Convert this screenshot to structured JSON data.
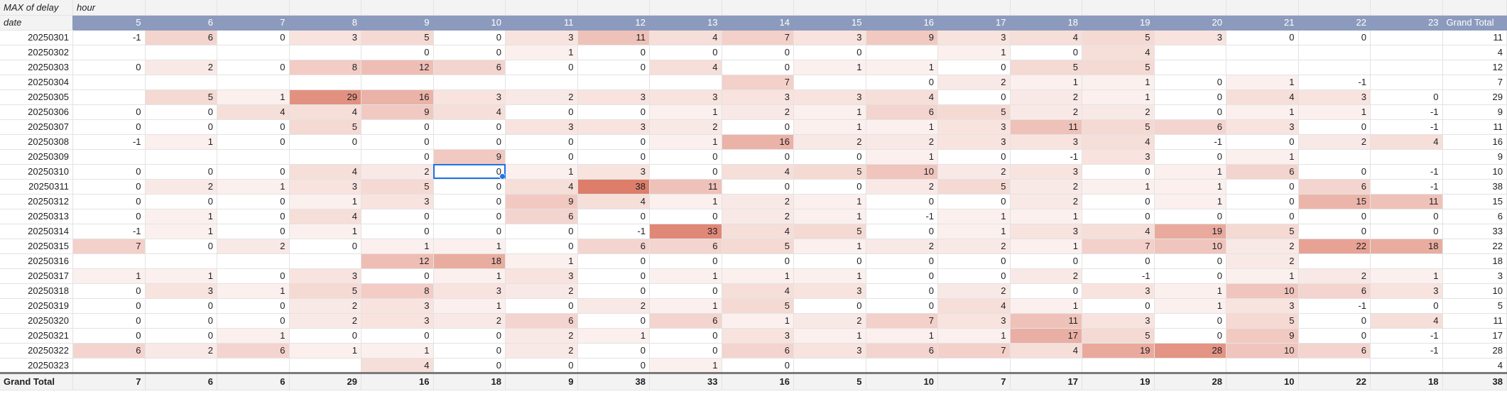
{
  "sheet": {
    "corner_title": "MAX of delay",
    "column_group_label": "hour",
    "row_group_label": "date",
    "grand_total_label": "Grand Total",
    "heat_color": "#dd7e6b",
    "header_color": "#8c9bbd",
    "selected_cell": {
      "row": "20250310",
      "hour": "10"
    },
    "hours": [
      "5",
      "6",
      "7",
      "8",
      "9",
      "10",
      "11",
      "12",
      "13",
      "14",
      "15",
      "16",
      "17",
      "18",
      "19",
      "20",
      "21",
      "22",
      "23"
    ],
    "rows": [
      {
        "date": "20250301",
        "vals": [
          -1,
          6,
          0,
          3,
          5,
          0,
          3,
          11,
          4,
          7,
          3,
          9,
          3,
          4,
          5,
          3,
          0,
          0,
          null
        ],
        "total": 11
      },
      {
        "date": "20250302",
        "vals": [
          null,
          null,
          null,
          null,
          0,
          0,
          1,
          0,
          0,
          0,
          0,
          null,
          1,
          0,
          4,
          null,
          null,
          null,
          null
        ],
        "total": 4
      },
      {
        "date": "20250303",
        "vals": [
          0,
          2,
          0,
          8,
          12,
          6,
          0,
          0,
          4,
          0,
          1,
          1,
          0,
          5,
          5,
          null,
          null,
          null,
          null
        ],
        "total": 12
      },
      {
        "date": "20250304",
        "vals": [
          null,
          null,
          null,
          null,
          null,
          null,
          null,
          null,
          null,
          7,
          null,
          0,
          2,
          1,
          1,
          0,
          1,
          -1,
          null
        ],
        "total": 7
      },
      {
        "date": "20250305",
        "vals": [
          null,
          5,
          1,
          29,
          16,
          3,
          2,
          3,
          3,
          3,
          3,
          4,
          0,
          2,
          1,
          0,
          4,
          3,
          0
        ],
        "total": 29
      },
      {
        "date": "20250306",
        "vals": [
          0,
          0,
          4,
          4,
          9,
          4,
          0,
          0,
          1,
          2,
          1,
          6,
          5,
          2,
          2,
          0,
          1,
          1,
          -1
        ],
        "total": 9
      },
      {
        "date": "20250307",
        "vals": [
          0,
          0,
          0,
          5,
          0,
          0,
          3,
          3,
          2,
          0,
          1,
          1,
          3,
          11,
          5,
          6,
          3,
          0,
          -1
        ],
        "total": 11
      },
      {
        "date": "20250308",
        "vals": [
          -1,
          1,
          0,
          0,
          0,
          0,
          0,
          0,
          1,
          16,
          2,
          2,
          3,
          3,
          4,
          -1,
          0,
          2,
          4
        ],
        "total": 16
      },
      {
        "date": "20250309",
        "vals": [
          null,
          null,
          null,
          null,
          0,
          9,
          0,
          0,
          0,
          0,
          0,
          1,
          0,
          -1,
          3,
          0,
          1,
          null,
          null
        ],
        "total": 9
      },
      {
        "date": "20250310",
        "vals": [
          0,
          0,
          0,
          4,
          2,
          0,
          1,
          3,
          0,
          4,
          5,
          10,
          2,
          3,
          0,
          1,
          6,
          0,
          -1
        ],
        "total": 10
      },
      {
        "date": "20250311",
        "vals": [
          0,
          2,
          1,
          3,
          5,
          0,
          4,
          38,
          11,
          0,
          0,
          2,
          5,
          2,
          1,
          1,
          0,
          6,
          -1
        ],
        "total": 38
      },
      {
        "date": "20250312",
        "vals": [
          0,
          0,
          0,
          1,
          3,
          0,
          9,
          4,
          1,
          2,
          1,
          0,
          0,
          2,
          0,
          1,
          0,
          15,
          11
        ],
        "total": 15
      },
      {
        "date": "20250313",
        "vals": [
          0,
          1,
          0,
          4,
          0,
          0,
          6,
          0,
          0,
          2,
          1,
          -1,
          1,
          1,
          0,
          0,
          0,
          0,
          0
        ],
        "total": 6
      },
      {
        "date": "20250314",
        "vals": [
          -1,
          1,
          0,
          1,
          0,
          0,
          0,
          -1,
          33,
          4,
          5,
          0,
          1,
          3,
          4,
          19,
          5,
          0,
          0
        ],
        "total": 33
      },
      {
        "date": "20250315",
        "vals": [
          7,
          0,
          2,
          0,
          1,
          1,
          0,
          6,
          6,
          5,
          1,
          2,
          2,
          1,
          7,
          10,
          2,
          22,
          18
        ],
        "total": 22
      },
      {
        "date": "20250316",
        "vals": [
          null,
          null,
          null,
          null,
          12,
          18,
          1,
          0,
          0,
          0,
          0,
          0,
          0,
          0,
          0,
          0,
          2,
          null,
          null
        ],
        "total": 18
      },
      {
        "date": "20250317",
        "vals": [
          1,
          1,
          0,
          3,
          0,
          1,
          3,
          0,
          1,
          1,
          1,
          0,
          0,
          2,
          -1,
          0,
          1,
          2,
          1
        ],
        "total": 3
      },
      {
        "date": "20250318",
        "vals": [
          0,
          3,
          1,
          5,
          8,
          3,
          2,
          0,
          0,
          4,
          3,
          0,
          2,
          0,
          3,
          1,
          10,
          6,
          3
        ],
        "total": 10
      },
      {
        "date": "20250319",
        "vals": [
          0,
          0,
          0,
          2,
          3,
          1,
          0,
          2,
          1,
          5,
          0,
          0,
          4,
          1,
          0,
          1,
          3,
          -1,
          0
        ],
        "total": 5
      },
      {
        "date": "20250320",
        "vals": [
          0,
          0,
          0,
          2,
          3,
          2,
          6,
          0,
          6,
          1,
          2,
          7,
          3,
          11,
          3,
          0,
          5,
          0,
          4
        ],
        "total": 11
      },
      {
        "date": "20250321",
        "vals": [
          0,
          0,
          1,
          0,
          0,
          0,
          2,
          1,
          0,
          3,
          1,
          1,
          1,
          17,
          5,
          0,
          9,
          0,
          -1
        ],
        "total": 17
      },
      {
        "date": "20250322",
        "vals": [
          6,
          2,
          6,
          1,
          1,
          0,
          2,
          0,
          0,
          6,
          3,
          6,
          7,
          4,
          19,
          28,
          10,
          6,
          -1
        ],
        "total": 28
      },
      {
        "date": "20250323",
        "vals": [
          null,
          null,
          null,
          null,
          4,
          0,
          0,
          0,
          1,
          0,
          null,
          null,
          null,
          null,
          null,
          null,
          null,
          null,
          null
        ],
        "total": 4
      }
    ],
    "totals": [
      7,
      6,
      6,
      29,
      16,
      18,
      9,
      38,
      33,
      16,
      5,
      10,
      7,
      17,
      19,
      28,
      10,
      22,
      18
    ],
    "grand_total": 38
  }
}
